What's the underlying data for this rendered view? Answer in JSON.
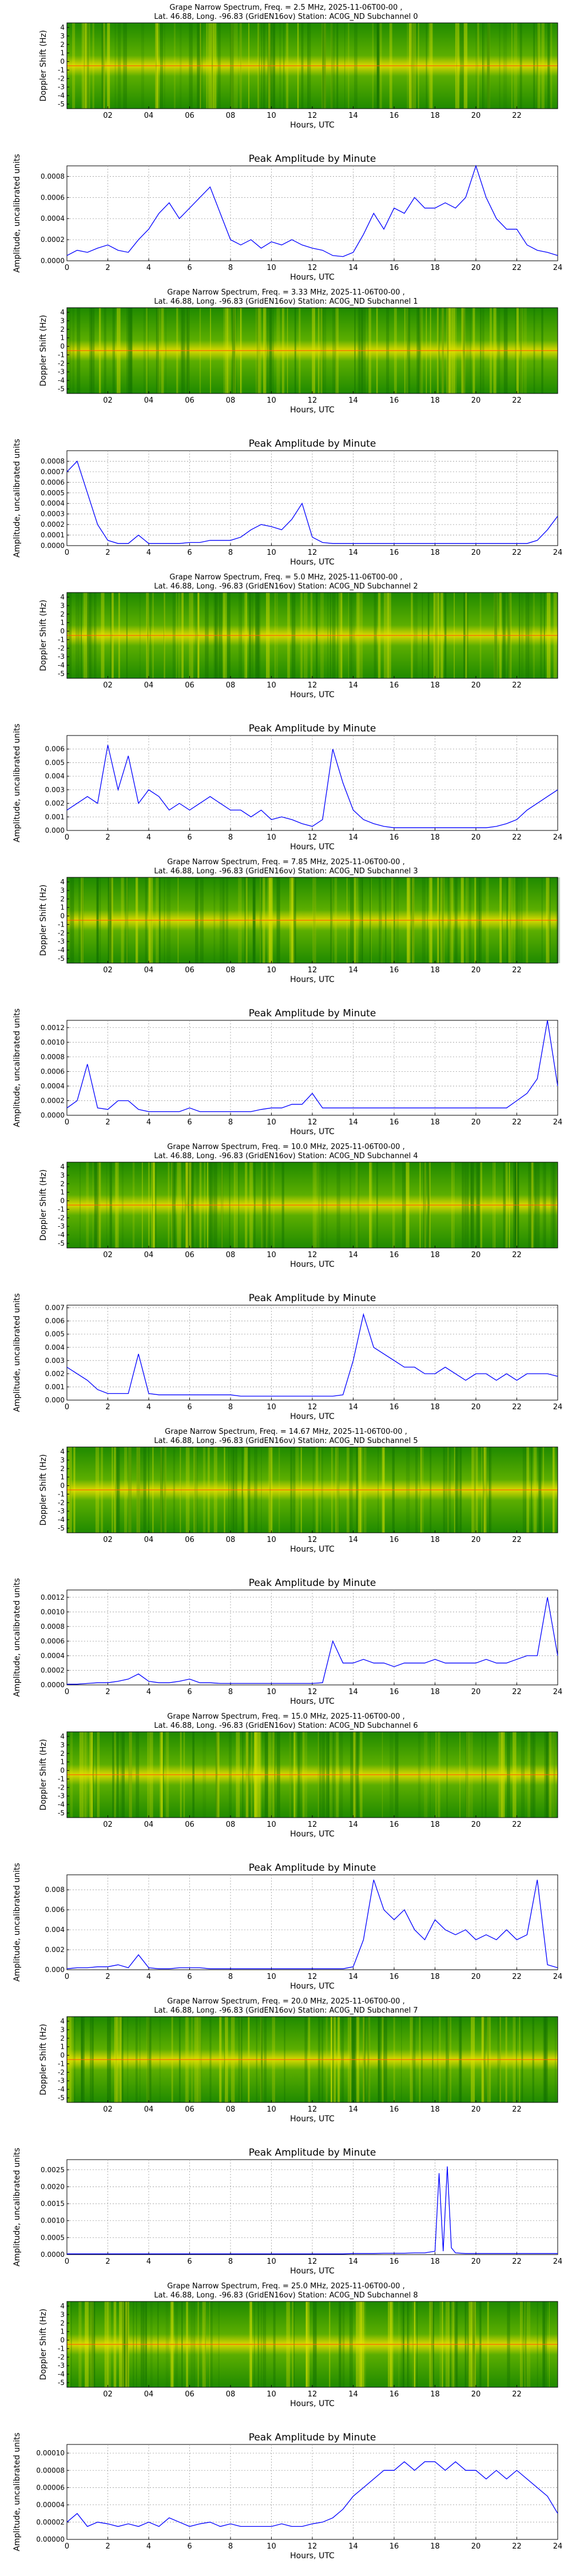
{
  "station_info": "Lat.  46.88, Long. -96.83 (GridEN16ov) Station: AC0G_ND",
  "spectrogram_ylabel": "Doppler Shift (Hz)",
  "spectrogram_yticks": [
    "4",
    "3",
    "2",
    "1",
    "0",
    "-1",
    "-2",
    "-3",
    "-4",
    "-5"
  ],
  "spectrogram_xticks": [
    "02",
    "04",
    "06",
    "08",
    "10",
    "12",
    "14",
    "16",
    "18",
    "20",
    "22"
  ],
  "spectrogram_xlabel": "Hours, UTC",
  "amplitude_title": "Peak Amplitude by Minute",
  "amplitude_ylabel": "Amplitude, uncalibrated units",
  "amplitude_xlabel": "Hours, UTC",
  "amplitude_xticks": [
    "0",
    "2",
    "4",
    "6",
    "8",
    "10",
    "12",
    "14",
    "16",
    "18",
    "20",
    "22",
    "24"
  ],
  "colors": {
    "line": "#0000ff",
    "spec_low": "#1f8a00",
    "spec_mid": "#d8d800",
    "spec_high": "#ff5500"
  },
  "chart_data": [
    {
      "type": "heatmap",
      "title": "Grape Narrow Spectrum, Freq. = 2.5 MHz, 2025-11-06T00-00 ,",
      "subtitle": "Subchannel 0",
      "ylim": [
        -5,
        4.5
      ],
      "xlim": [
        0,
        24
      ]
    },
    {
      "type": "line",
      "title": "Peak Amplitude by Minute",
      "xlim": [
        0,
        24
      ],
      "ylim": [
        0,
        0.0009
      ],
      "yticks": [
        "0.0000",
        "0.0002",
        "0.0004",
        "0.0006",
        "0.0008"
      ],
      "x": [
        0,
        0.5,
        1,
        1.5,
        2,
        2.5,
        3,
        3.5,
        4,
        4.5,
        5,
        5.5,
        6,
        6.5,
        7,
        7.5,
        8,
        8.5,
        9,
        9.5,
        10,
        10.5,
        11,
        11.5,
        12,
        12.5,
        13,
        13.5,
        14,
        14.5,
        15,
        15.5,
        16,
        16.5,
        17,
        17.5,
        18,
        18.5,
        19,
        19.5,
        20,
        20.5,
        21,
        21.5,
        22,
        22.5,
        23,
        23.5,
        24
      ],
      "y": [
        5e-05,
        0.0001,
        8e-05,
        0.00012,
        0.00015,
        0.0001,
        8e-05,
        0.0002,
        0.0003,
        0.00045,
        0.00055,
        0.0004,
        0.0005,
        0.0006,
        0.0007,
        0.00045,
        0.0002,
        0.00015,
        0.0002,
        0.00012,
        0.00018,
        0.00015,
        0.0002,
        0.00015,
        0.00012,
        0.0001,
        5e-05,
        4e-05,
        8e-05,
        0.00025,
        0.00045,
        0.0003,
        0.0005,
        0.00045,
        0.0006,
        0.0005,
        0.0005,
        0.00055,
        0.0005,
        0.0006,
        0.0009,
        0.0006,
        0.0004,
        0.0003,
        0.0003,
        0.00015,
        0.0001,
        8e-05,
        5e-05
      ]
    },
    {
      "type": "heatmap",
      "title": "Grape Narrow Spectrum, Freq. = 3.33 MHz, 2025-11-06T00-00 ,",
      "subtitle": "Subchannel 1",
      "ylim": [
        -5,
        4.5
      ],
      "xlim": [
        0,
        24
      ]
    },
    {
      "type": "line",
      "title": "Peak Amplitude by Minute",
      "xlim": [
        0,
        24
      ],
      "ylim": [
        0,
        0.0009
      ],
      "yticks": [
        "0.0000",
        "0.0001",
        "0.0002",
        "0.0003",
        "0.0004",
        "0.0005",
        "0.0006",
        "0.0007",
        "0.0008"
      ],
      "x": [
        0,
        0.5,
        1,
        1.5,
        2,
        2.5,
        3,
        3.5,
        4,
        4.5,
        5,
        5.5,
        6,
        6.5,
        7,
        7.5,
        8,
        8.5,
        9,
        9.5,
        10,
        10.5,
        11,
        11.5,
        12,
        12.5,
        13,
        13.5,
        14,
        14.5,
        15,
        15.5,
        16,
        16.5,
        17,
        17.5,
        18,
        18.5,
        19,
        19.5,
        20,
        20.5,
        21,
        21.5,
        22,
        22.5,
        23,
        23.5,
        24
      ],
      "y": [
        0.0007,
        0.0008,
        0.0005,
        0.0002,
        5e-05,
        2e-05,
        2e-05,
        0.0001,
        2e-05,
        2e-05,
        2e-05,
        2e-05,
        3e-05,
        3e-05,
        5e-05,
        5e-05,
        5e-05,
        8e-05,
        0.00015,
        0.0002,
        0.00018,
        0.00015,
        0.00025,
        0.0004,
        8e-05,
        3e-05,
        2e-05,
        2e-05,
        2e-05,
        2e-05,
        2e-05,
        2e-05,
        2e-05,
        2e-05,
        2e-05,
        2e-05,
        2e-05,
        2e-05,
        2e-05,
        2e-05,
        2e-05,
        2e-05,
        2e-05,
        2e-05,
        2e-05,
        2e-05,
        5e-05,
        0.00015,
        0.00028
      ]
    },
    {
      "type": "heatmap",
      "title": "Grape Narrow Spectrum, Freq. = 5.0 MHz, 2025-11-06T00-00 ,",
      "subtitle": "Subchannel 2",
      "ylim": [
        -5,
        4.5
      ],
      "xlim": [
        0,
        24
      ]
    },
    {
      "type": "line",
      "title": "Peak Amplitude by Minute",
      "xlim": [
        0,
        24
      ],
      "ylim": [
        0,
        0.007
      ],
      "yticks": [
        "0.000",
        "0.001",
        "0.002",
        "0.003",
        "0.004",
        "0.005",
        "0.006"
      ],
      "x": [
        0,
        0.5,
        1,
        1.5,
        2,
        2.5,
        3,
        3.5,
        4,
        4.5,
        5,
        5.5,
        6,
        6.5,
        7,
        7.5,
        8,
        8.5,
        9,
        9.5,
        10,
        10.5,
        11,
        11.5,
        12,
        12.5,
        13,
        13.5,
        14,
        14.5,
        15,
        15.5,
        16,
        16.5,
        17,
        17.5,
        18,
        18.5,
        19,
        19.5,
        20,
        20.5,
        21,
        21.5,
        22,
        22.5,
        23,
        23.5,
        24
      ],
      "y": [
        0.0015,
        0.002,
        0.0025,
        0.002,
        0.0063,
        0.003,
        0.0055,
        0.002,
        0.003,
        0.0025,
        0.0015,
        0.002,
        0.0015,
        0.002,
        0.0025,
        0.002,
        0.0015,
        0.0015,
        0.001,
        0.0015,
        0.0008,
        0.001,
        0.0008,
        0.0005,
        0.0003,
        0.0008,
        0.006,
        0.0035,
        0.0015,
        0.0008,
        0.0005,
        0.0003,
        0.0002,
        0.0002,
        0.0002,
        0.0002,
        0.0002,
        0.0002,
        0.0002,
        0.0002,
        0.0002,
        0.0002,
        0.0003,
        0.0005,
        0.0008,
        0.0015,
        0.002,
        0.0025,
        0.003
      ]
    },
    {
      "type": "heatmap",
      "title": "Grape Narrow Spectrum, Freq. = 7.85 MHz, 2025-11-06T00-00 ,",
      "subtitle": "Subchannel 3",
      "ylim": [
        -5,
        4.5
      ],
      "xlim": [
        0,
        24
      ]
    },
    {
      "type": "line",
      "title": "Peak Amplitude by Minute",
      "xlim": [
        0,
        24
      ],
      "ylim": [
        0,
        0.0013
      ],
      "yticks": [
        "0.0000",
        "0.0002",
        "0.0004",
        "0.0006",
        "0.0008",
        "0.0010",
        "0.0012"
      ],
      "x": [
        0,
        0.5,
        1,
        1.5,
        2,
        2.5,
        3,
        3.5,
        4,
        4.5,
        5,
        5.5,
        6,
        6.5,
        7,
        7.5,
        8,
        8.5,
        9,
        9.5,
        10,
        10.5,
        11,
        11.5,
        12,
        12.5,
        13,
        13.5,
        14,
        14.5,
        15,
        15.5,
        16,
        16.5,
        17,
        17.5,
        18,
        18.5,
        19,
        19.5,
        20,
        20.5,
        21,
        21.5,
        22,
        22.5,
        23,
        23.5,
        24
      ],
      "y": [
        0.0001,
        0.0002,
        0.0007,
        0.0001,
        8e-05,
        0.0002,
        0.0002,
        8e-05,
        5e-05,
        5e-05,
        5e-05,
        5e-05,
        0.0001,
        5e-05,
        5e-05,
        5e-05,
        5e-05,
        5e-05,
        5e-05,
        8e-05,
        0.0001,
        0.0001,
        0.00015,
        0.00015,
        0.0003,
        0.0001,
        0.0001,
        0.0001,
        0.0001,
        0.0001,
        0.0001,
        0.0001,
        0.0001,
        0.0001,
        0.0001,
        0.0001,
        0.0001,
        0.0001,
        0.0001,
        0.0001,
        0.0001,
        0.0001,
        0.0001,
        0.0001,
        0.0002,
        0.0003,
        0.0005,
        0.0013,
        0.0004
      ]
    },
    {
      "type": "heatmap",
      "title": "Grape Narrow Spectrum, Freq. = 10.0 MHz, 2025-11-06T00-00 ,",
      "subtitle": "Subchannel 4",
      "ylim": [
        -5,
        4.5
      ],
      "xlim": [
        0,
        24
      ]
    },
    {
      "type": "line",
      "title": "Peak Amplitude by Minute",
      "xlim": [
        0,
        24
      ],
      "ylim": [
        0,
        0.0072
      ],
      "yticks": [
        "0.000",
        "0.001",
        "0.002",
        "0.003",
        "0.004",
        "0.005",
        "0.006",
        "0.007"
      ],
      "x": [
        0,
        0.5,
        1,
        1.5,
        2,
        2.5,
        3,
        3.5,
        4,
        4.5,
        5,
        5.5,
        6,
        6.5,
        7,
        7.5,
        8,
        8.5,
        9,
        9.5,
        10,
        10.5,
        11,
        11.5,
        12,
        12.5,
        13,
        13.5,
        14,
        14.5,
        15,
        15.5,
        16,
        16.5,
        17,
        17.5,
        18,
        18.5,
        19,
        19.5,
        20,
        20.5,
        21,
        21.5,
        22,
        22.5,
        23,
        23.5,
        24
      ],
      "y": [
        0.0025,
        0.002,
        0.0015,
        0.0008,
        0.0005,
        0.0005,
        0.0005,
        0.0035,
        0.0005,
        0.0004,
        0.0004,
        0.0004,
        0.0004,
        0.0004,
        0.0004,
        0.0004,
        0.0004,
        0.0003,
        0.0003,
        0.0003,
        0.0003,
        0.0003,
        0.0003,
        0.0003,
        0.0003,
        0.0003,
        0.0003,
        0.0004,
        0.003,
        0.0065,
        0.004,
        0.0035,
        0.003,
        0.0025,
        0.0025,
        0.002,
        0.002,
        0.0025,
        0.002,
        0.0015,
        0.002,
        0.002,
        0.0015,
        0.002,
        0.0015,
        0.002,
        0.002,
        0.002,
        0.0018
      ]
    },
    {
      "type": "heatmap",
      "title": "Grape Narrow Spectrum, Freq. = 14.67 MHz, 2025-11-06T00-00 ,",
      "subtitle": "Subchannel 5",
      "ylim": [
        -5,
        4.5
      ],
      "xlim": [
        0,
        24
      ]
    },
    {
      "type": "line",
      "title": "Peak Amplitude by Minute",
      "xlim": [
        0,
        24
      ],
      "ylim": [
        0,
        0.0013
      ],
      "yticks": [
        "0.0000",
        "0.0002",
        "0.0004",
        "0.0006",
        "0.0008",
        "0.0010",
        "0.0012"
      ],
      "x": [
        0,
        0.5,
        1,
        1.5,
        2,
        2.5,
        3,
        3.5,
        4,
        4.5,
        5,
        5.5,
        6,
        6.5,
        7,
        7.5,
        8,
        8.5,
        9,
        9.5,
        10,
        10.5,
        11,
        11.5,
        12,
        12.5,
        13,
        13.5,
        14,
        14.5,
        15,
        15.5,
        16,
        16.5,
        17,
        17.5,
        18,
        18.5,
        19,
        19.5,
        20,
        20.5,
        21,
        21.5,
        22,
        22.5,
        23,
        23.5,
        24
      ],
      "y": [
        1e-05,
        1e-05,
        2e-05,
        3e-05,
        3e-05,
        5e-05,
        8e-05,
        0.00015,
        5e-05,
        3e-05,
        3e-05,
        5e-05,
        8e-05,
        3e-05,
        3e-05,
        2e-05,
        2e-05,
        2e-05,
        2e-05,
        2e-05,
        2e-05,
        2e-05,
        2e-05,
        2e-05,
        2e-05,
        3e-05,
        0.0006,
        0.0003,
        0.0003,
        0.00035,
        0.0003,
        0.0003,
        0.00025,
        0.0003,
        0.0003,
        0.0003,
        0.00035,
        0.0003,
        0.0003,
        0.0003,
        0.0003,
        0.00035,
        0.0003,
        0.0003,
        0.00035,
        0.0004,
        0.0004,
        0.0012,
        0.0004
      ]
    },
    {
      "type": "heatmap",
      "title": "Grape Narrow Spectrum, Freq. = 15.0 MHz, 2025-11-06T00-00 ,",
      "subtitle": "Subchannel 6",
      "ylim": [
        -5,
        4.5
      ],
      "xlim": [
        0,
        24
      ]
    },
    {
      "type": "line",
      "title": "Peak Amplitude by Minute",
      "xlim": [
        0,
        24
      ],
      "ylim": [
        0,
        0.0095
      ],
      "yticks": [
        "0.000",
        "0.002",
        "0.004",
        "0.006",
        "0.008"
      ],
      "x": [
        0,
        0.5,
        1,
        1.5,
        2,
        2.5,
        3,
        3.5,
        4,
        4.5,
        5,
        5.5,
        6,
        6.5,
        7,
        7.5,
        8,
        8.5,
        9,
        9.5,
        10,
        10.5,
        11,
        11.5,
        12,
        12.5,
        13,
        13.5,
        14,
        14.5,
        15,
        15.5,
        16,
        16.5,
        17,
        17.5,
        18,
        18.5,
        19,
        19.5,
        20,
        20.5,
        21,
        21.5,
        22,
        22.5,
        23,
        23.5,
        24
      ],
      "y": [
        0.0001,
        0.0002,
        0.0002,
        0.0003,
        0.0003,
        0.0005,
        0.0002,
        0.0015,
        0.0002,
        0.0001,
        0.0001,
        0.0002,
        0.0002,
        0.0002,
        0.0001,
        0.0001,
        0.0001,
        0.0001,
        0.0001,
        0.0001,
        0.0001,
        0.0001,
        0.0001,
        0.0001,
        0.0001,
        0.0001,
        0.0001,
        0.0001,
        0.0003,
        0.003,
        0.009,
        0.006,
        0.005,
        0.006,
        0.004,
        0.003,
        0.005,
        0.004,
        0.0035,
        0.004,
        0.003,
        0.0035,
        0.003,
        0.004,
        0.003,
        0.0035,
        0.009,
        0.0005,
        0.0002
      ]
    },
    {
      "type": "heatmap",
      "title": "Grape Narrow Spectrum, Freq. = 20.0 MHz, 2025-11-06T00-00 ,",
      "subtitle": "Subchannel 7",
      "ylim": [
        -5,
        4.5
      ],
      "xlim": [
        0,
        24
      ]
    },
    {
      "type": "line",
      "title": "Peak Amplitude by Minute",
      "xlim": [
        0,
        24
      ],
      "ylim": [
        0,
        0.0028
      ],
      "yticks": [
        "0.0000",
        "0.0005",
        "0.0010",
        "0.0015",
        "0.0020",
        "0.0025"
      ],
      "x": [
        0,
        0.5,
        1,
        1.5,
        2,
        2.5,
        3,
        3.5,
        4,
        4.5,
        5,
        5.5,
        6,
        6.5,
        7,
        7.5,
        8,
        8.5,
        9,
        9.5,
        10,
        10.5,
        11,
        11.5,
        12,
        12.5,
        13,
        13.5,
        14,
        14.5,
        15,
        15.5,
        16,
        16.5,
        17,
        17.5,
        18,
        18.2,
        18.4,
        18.6,
        18.8,
        19,
        19.5,
        20,
        20.5,
        21,
        21.5,
        22,
        22.5,
        23,
        23.5,
        24
      ],
      "y": [
        2e-05,
        2e-05,
        2e-05,
        2e-05,
        2e-05,
        2e-05,
        2e-05,
        2e-05,
        2e-05,
        2e-05,
        2e-05,
        2e-05,
        2e-05,
        2e-05,
        2e-05,
        2e-05,
        2e-05,
        2e-05,
        2e-05,
        2e-05,
        2e-05,
        2e-05,
        2e-05,
        2e-05,
        2e-05,
        2e-05,
        2e-05,
        2e-05,
        3e-05,
        3e-05,
        3e-05,
        4e-05,
        4e-05,
        4e-05,
        5e-05,
        5e-05,
        0.0001,
        0.0024,
        0.0001,
        0.0026,
        0.0002,
        5e-05,
        3e-05,
        3e-05,
        3e-05,
        3e-05,
        3e-05,
        3e-05,
        3e-05,
        3e-05,
        3e-05,
        3e-05
      ]
    },
    {
      "type": "heatmap",
      "title": "Grape Narrow Spectrum, Freq. = 25.0 MHz, 2025-11-06T00-00 ,",
      "subtitle": "Subchannel 8",
      "ylim": [
        -5,
        4.5
      ],
      "xlim": [
        0,
        24
      ]
    },
    {
      "type": "line",
      "title": "Peak Amplitude by Minute",
      "xlim": [
        0,
        24
      ],
      "ylim": [
        0,
        0.00011
      ],
      "yticks": [
        "0.00000",
        "0.00002",
        "0.00004",
        "0.00006",
        "0.00008",
        "0.00010"
      ],
      "x": [
        0,
        0.5,
        1,
        1.5,
        2,
        2.5,
        3,
        3.5,
        4,
        4.5,
        5,
        5.5,
        6,
        6.5,
        7,
        7.5,
        8,
        8.5,
        9,
        9.5,
        10,
        10.5,
        11,
        11.5,
        12,
        12.5,
        13,
        13.5,
        14,
        14.5,
        15,
        15.5,
        16,
        16.5,
        17,
        17.5,
        18,
        18.5,
        19,
        19.5,
        20,
        20.5,
        21,
        21.5,
        22,
        22.5,
        23,
        23.5,
        24
      ],
      "y": [
        2e-05,
        3e-05,
        1.5e-05,
        2e-05,
        1.8e-05,
        1.5e-05,
        1.8e-05,
        1.5e-05,
        2e-05,
        1.5e-05,
        2.5e-05,
        2e-05,
        1.5e-05,
        1.8e-05,
        2e-05,
        1.5e-05,
        1.8e-05,
        1.5e-05,
        1.5e-05,
        1.5e-05,
        1.5e-05,
        1.8e-05,
        1.5e-05,
        1.5e-05,
        1.8e-05,
        2e-05,
        2.5e-05,
        3.5e-05,
        5e-05,
        6e-05,
        7e-05,
        8e-05,
        8e-05,
        9e-05,
        8e-05,
        9e-05,
        9e-05,
        8e-05,
        9e-05,
        8e-05,
        8e-05,
        7e-05,
        8e-05,
        7e-05,
        8e-05,
        7e-05,
        6e-05,
        5e-05,
        3e-05
      ]
    }
  ]
}
